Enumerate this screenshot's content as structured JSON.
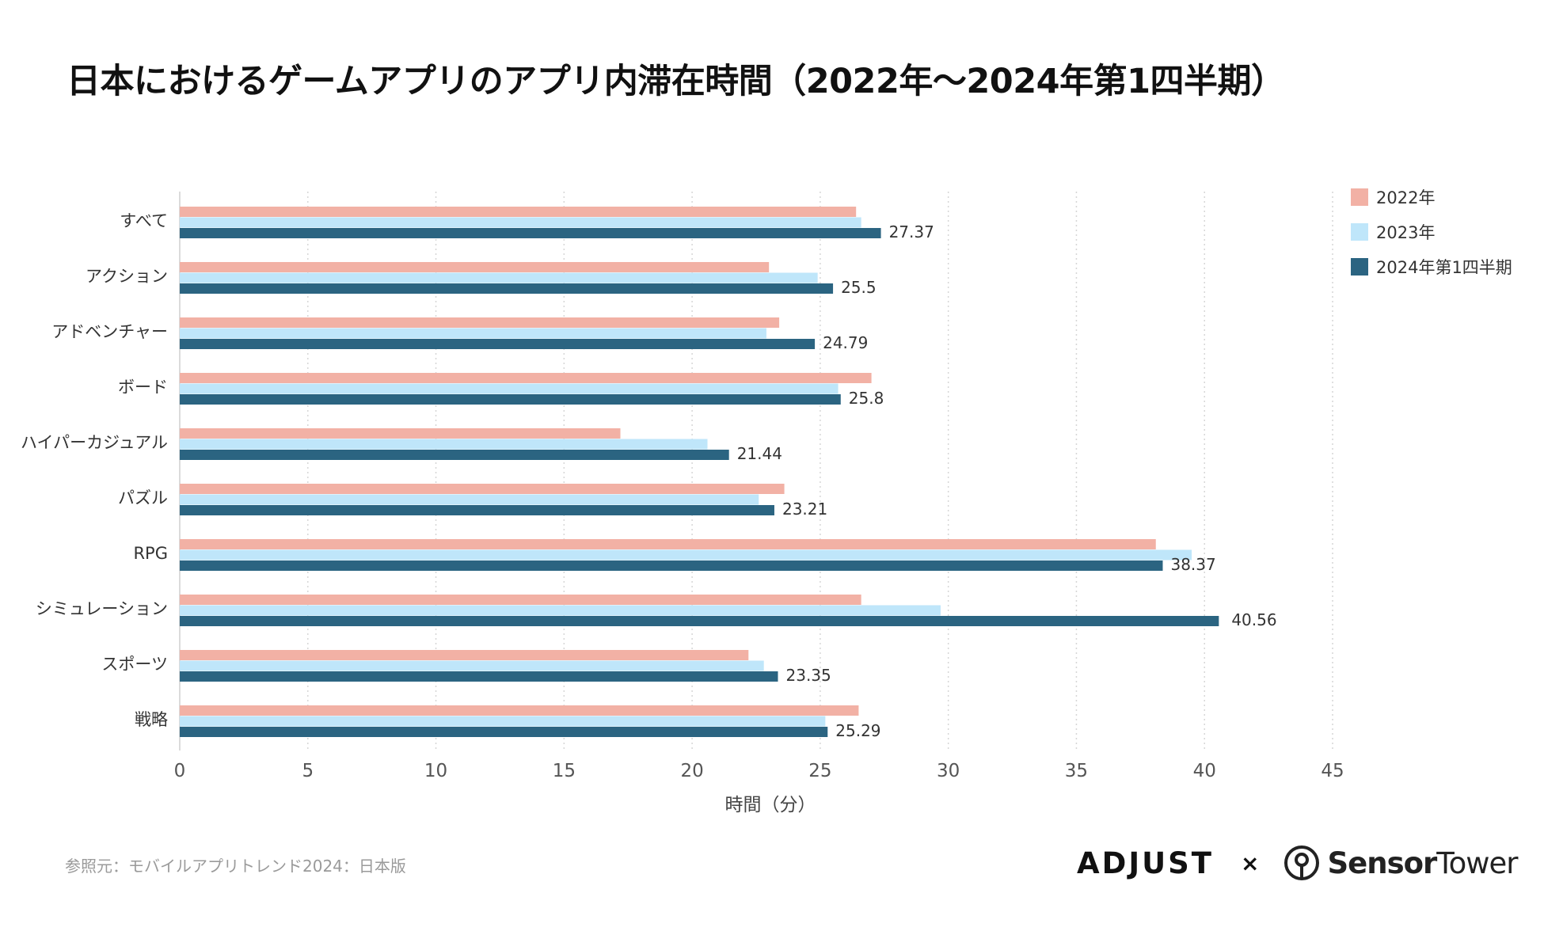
{
  "title": "日本におけるゲームアプリのアプリ内滞在時間（2022年〜2024年第1四半期）",
  "source": "参照元：モバイルアプリトレンド2024：日本版",
  "logos": {
    "adjust": "ADJUST",
    "times": "×",
    "sensor": "Sensor",
    "tower": "Tower"
  },
  "colors": {
    "s2022": "#f2b1a5",
    "s2023": "#bfe6fa",
    "s2024": "#2b6481"
  },
  "chart_data": {
    "type": "bar",
    "orientation": "horizontal",
    "title": "日本におけるゲームアプリのアプリ内滞在時間（2022年〜2024年第1四半期）",
    "xlabel": "時間（分）",
    "ylabel": "",
    "xlim": [
      0,
      45
    ],
    "xticks": [
      0,
      5,
      10,
      15,
      20,
      25,
      30,
      35,
      40,
      45
    ],
    "grid": "vertical-dotted",
    "legend_position": "top-right",
    "categories": [
      "すべて",
      "アクション",
      "アドベンチャー",
      "ボード",
      "ハイパーカジュアル",
      "パズル",
      "RPG",
      "シミュレーション",
      "スポーツ",
      "戦略"
    ],
    "series": [
      {
        "name": "2022年",
        "values": [
          26.4,
          23.0,
          23.4,
          27.0,
          17.2,
          23.6,
          38.1,
          26.6,
          22.2,
          26.5
        ]
      },
      {
        "name": "2023年",
        "values": [
          26.6,
          24.9,
          22.9,
          25.7,
          20.6,
          22.6,
          39.5,
          29.7,
          22.8,
          25.2
        ]
      },
      {
        "name": "2024年第1四半期",
        "values": [
          27.37,
          25.5,
          24.79,
          25.8,
          21.44,
          23.21,
          38.37,
          40.56,
          23.35,
          25.29
        ]
      }
    ],
    "data_labels": {
      "series": "2024年第1四半期",
      "labels": [
        "27.37",
        "25.5",
        "24.79",
        "25.8",
        "21.44",
        "23.21",
        "38.37",
        "40.56",
        "23.35",
        "25.29"
      ]
    }
  }
}
